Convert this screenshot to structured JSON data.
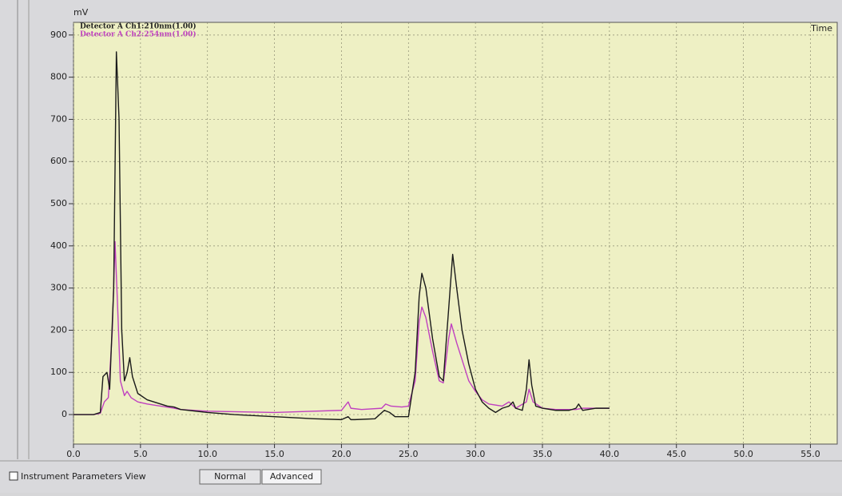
{
  "chart_data": {
    "type": "line",
    "y_label": "mV",
    "x_label": "Time",
    "xlim": [
      0,
      57
    ],
    "ylim": [
      -70,
      930
    ],
    "xticks": [
      {
        "value": 0,
        "label": "0.0"
      },
      {
        "value": 5,
        "label": "5.0"
      },
      {
        "value": 10,
        "label": "10.0"
      },
      {
        "value": 15,
        "label": "15.0"
      },
      {
        "value": 20,
        "label": "20.0"
      },
      {
        "value": 25,
        "label": "25.0"
      },
      {
        "value": 30,
        "label": "30.0"
      },
      {
        "value": 35,
        "label": "35.0"
      },
      {
        "value": 40,
        "label": "40.0"
      },
      {
        "value": 45,
        "label": "45.0"
      },
      {
        "value": 50,
        "label": "50.0"
      },
      {
        "value": 55,
        "label": "55.0"
      }
    ],
    "yticks": [
      0,
      100,
      200,
      300,
      400,
      500,
      600,
      700,
      800,
      900
    ],
    "grid": true,
    "series": [
      {
        "name": "Detector A Ch1:210nm(1.00)",
        "color": "#1a1a1a",
        "x": [
          0,
          1.5,
          2.0,
          2.2,
          2.5,
          2.7,
          3.0,
          3.2,
          3.4,
          3.6,
          3.8,
          4.0,
          4.2,
          4.4,
          4.8,
          5.5,
          7,
          7.5,
          8,
          10,
          12,
          15,
          18,
          20,
          20.5,
          20.7,
          21,
          22.5,
          23.2,
          23.6,
          24,
          25,
          25.5,
          25.8,
          26.0,
          26.3,
          26.8,
          27.3,
          27.6,
          28.0,
          28.3,
          28.6,
          29,
          29.5,
          30,
          30.5,
          31,
          31.5,
          32,
          32.5,
          32.8,
          33,
          33.5,
          33.8,
          34.0,
          34.2,
          34.5,
          35,
          36,
          37,
          37.5,
          37.7,
          38,
          39,
          40
        ],
        "values": [
          0,
          0,
          5,
          90,
          100,
          60,
          300,
          860,
          700,
          200,
          80,
          100,
          135,
          90,
          50,
          35,
          20,
          18,
          12,
          5,
          0,
          -5,
          -10,
          -12,
          -5,
          -12,
          -12,
          -10,
          10,
          5,
          -5,
          -5,
          100,
          280,
          335,
          300,
          180,
          90,
          80,
          250,
          380,
          300,
          200,
          120,
          60,
          30,
          15,
          5,
          15,
          20,
          30,
          15,
          10,
          60,
          130,
          70,
          20,
          15,
          10,
          10,
          15,
          25,
          10,
          15,
          15
        ]
      },
      {
        "name": "Detector A Ch2:254nm(1.00)",
        "color": "#c040c0",
        "x": [
          0,
          1.5,
          2.0,
          2.3,
          2.6,
          2.9,
          3.1,
          3.3,
          3.5,
          3.8,
          4.0,
          4.3,
          4.8,
          5.5,
          7.5,
          8,
          10,
          15,
          20,
          20.5,
          20.7,
          21.5,
          23,
          23.3,
          23.7,
          24.5,
          25,
          25.5,
          25.8,
          26.0,
          26.3,
          26.8,
          27.3,
          27.6,
          28.0,
          28.2,
          28.6,
          29,
          29.5,
          30,
          30.5,
          31,
          32,
          32.5,
          33,
          33.8,
          34,
          34.3,
          35,
          36,
          37.5,
          38,
          40
        ],
        "values": [
          0,
          0,
          3,
          30,
          40,
          200,
          410,
          250,
          80,
          45,
          55,
          40,
          30,
          25,
          15,
          12,
          8,
          5,
          10,
          30,
          15,
          12,
          15,
          25,
          20,
          18,
          20,
          80,
          220,
          255,
          230,
          150,
          80,
          75,
          180,
          215,
          170,
          130,
          80,
          55,
          35,
          25,
          20,
          30,
          15,
          30,
          60,
          30,
          15,
          12,
          12,
          15,
          15
        ]
      }
    ]
  },
  "ui": {
    "panel": "Instrument Parameters View",
    "tabs": [
      "Normal",
      "Advanced"
    ]
  }
}
